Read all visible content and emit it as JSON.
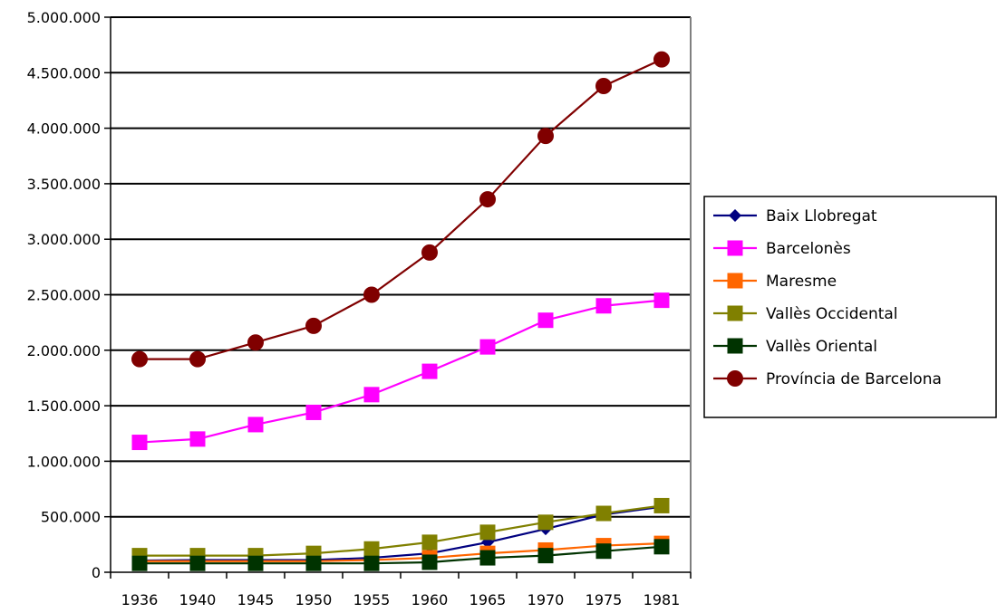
{
  "chart_data": {
    "type": "line",
    "title": "",
    "xlabel": "",
    "ylabel": "",
    "categories": [
      "1936",
      "1940",
      "1945",
      "1950",
      "1955",
      "1960",
      "1965",
      "1970",
      "1975",
      "1981"
    ],
    "ylim": [
      0,
      5000000
    ],
    "yticks": [
      0,
      500000,
      1000000,
      1500000,
      2000000,
      2500000,
      3000000,
      3500000,
      4000000,
      4500000,
      5000000
    ],
    "ytick_labels": [
      "0",
      "500.000",
      "1.000.000",
      "1.500.000",
      "2.000.000",
      "2.500.000",
      "3.000.000",
      "3.500.000",
      "4.000.000",
      "4.500.000",
      "5.000.000"
    ],
    "grid": "horizontal",
    "legend_position": "right",
    "series": [
      {
        "name": "Baix Llobregat",
        "color": "#000080",
        "marker": "diamond",
        "values": [
          105000,
          110000,
          110000,
          110000,
          130000,
          170000,
          270000,
          390000,
          520000,
          590000
        ]
      },
      {
        "name": "Barcelonès",
        "color": "#ff00ff",
        "marker": "square",
        "values": [
          1170000,
          1200000,
          1330000,
          1440000,
          1600000,
          1810000,
          2030000,
          2270000,
          2400000,
          2450000
        ]
      },
      {
        "name": "Maresme",
        "color": "#ff6600",
        "marker": "square",
        "values": [
          100000,
          100000,
          100000,
          100000,
          110000,
          130000,
          170000,
          200000,
          240000,
          260000
        ]
      },
      {
        "name": "Vallès Occidental",
        "color": "#808000",
        "marker": "square",
        "values": [
          150000,
          150000,
          150000,
          170000,
          210000,
          270000,
          360000,
          450000,
          530000,
          600000
        ]
      },
      {
        "name": "Vallès Oriental",
        "color": "#003300",
        "marker": "square",
        "values": [
          80000,
          80000,
          80000,
          80000,
          80000,
          90000,
          130000,
          150000,
          190000,
          230000
        ]
      },
      {
        "name": "Província de Barcelona",
        "color": "#800000",
        "marker": "circle",
        "values": [
          1920000,
          1920000,
          2070000,
          2220000,
          2500000,
          2880000,
          3360000,
          3930000,
          4380000,
          4620000
        ]
      }
    ]
  }
}
